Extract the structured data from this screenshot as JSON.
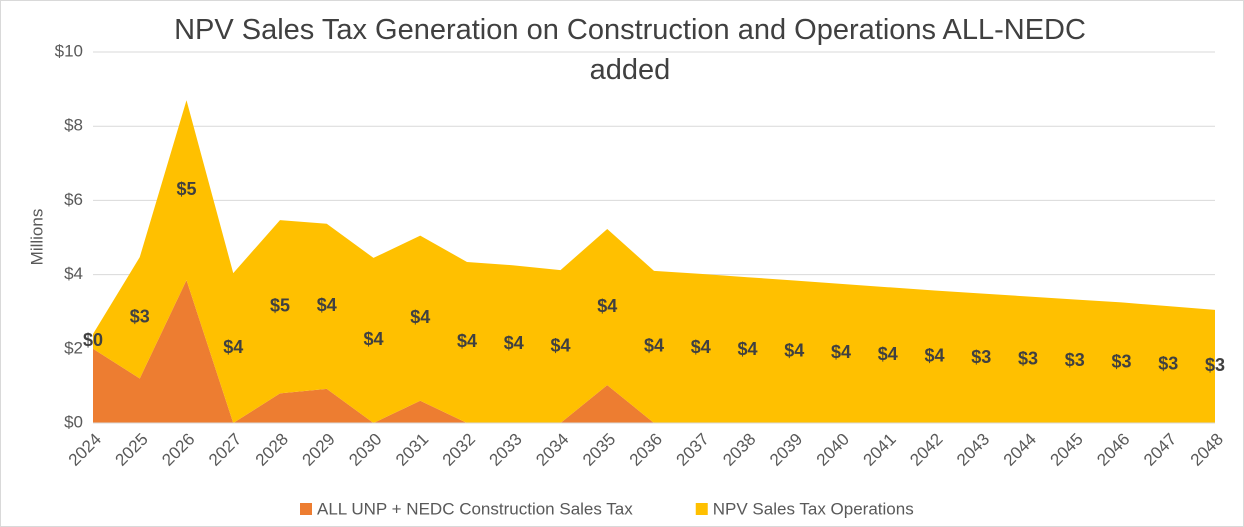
{
  "chart_data": {
    "type": "stacked_area",
    "title": "NPV Sales Tax Generation on Construction and Operations ALL-NEDC added",
    "y_label": "Millions",
    "categories": [
      "2024",
      "2025",
      "2026",
      "2027",
      "2028",
      "2029",
      "2030",
      "2031",
      "2032",
      "2033",
      "2034",
      "2035",
      "2036",
      "2037",
      "2038",
      "2039",
      "2040",
      "2041",
      "2042",
      "2043",
      "2044",
      "2045",
      "2046",
      "2047",
      "2048"
    ],
    "series": [
      {
        "name": "ALL UNP + NEDC Construction Sales Tax",
        "color": "#ED7D31",
        "values": [
          2.0,
          1.2,
          3.85,
          0,
          0.8,
          0.92,
          0,
          0.6,
          0,
          0,
          0,
          1.02,
          0,
          0,
          0,
          0,
          0,
          0,
          0,
          0,
          0,
          0,
          0,
          0,
          0
        ]
      },
      {
        "name": "NPV Sales Tax Operations",
        "color": "#FFC000",
        "values": [
          0.4,
          3.27,
          4.85,
          4.04,
          4.67,
          4.45,
          4.45,
          4.45,
          4.34,
          4.25,
          4.12,
          4.21,
          4.1,
          4.02,
          3.93,
          3.84,
          3.75,
          3.66,
          3.57,
          3.49,
          3.41,
          3.33,
          3.25,
          3.15,
          3.05
        ],
        "value_labels": [
          "$0",
          "$3",
          "$5",
          "$4",
          "$5",
          "$4",
          "$4",
          "$4",
          "$4",
          "$4",
          "$4",
          "$4",
          "$4",
          "$4",
          "$4",
          "$4",
          "$4",
          "$4",
          "$4",
          "$3",
          "$3",
          "$3",
          "$3",
          "$3",
          "$3"
        ]
      }
    ],
    "ylim": [
      0,
      10
    ],
    "yticks": [
      {
        "value": 0,
        "label": "$0"
      },
      {
        "value": 2,
        "label": "$2"
      },
      {
        "value": 4,
        "label": "$4"
      },
      {
        "value": 6,
        "label": "$6"
      },
      {
        "value": 8,
        "label": "$8"
      },
      {
        "value": 10,
        "label": "$10"
      }
    ],
    "grid": true,
    "legend": "bottom"
  }
}
